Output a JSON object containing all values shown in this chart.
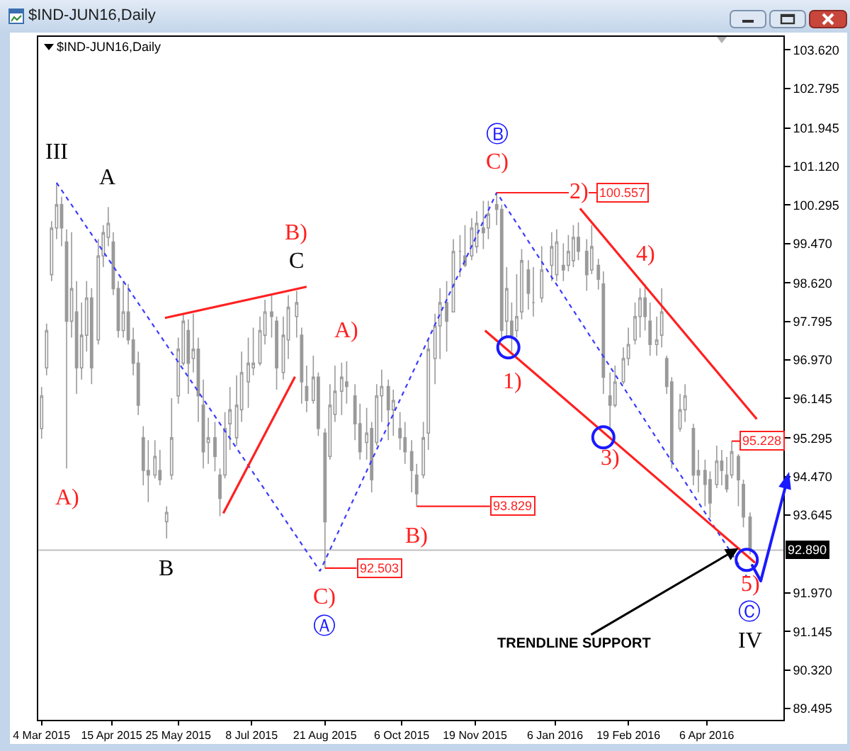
{
  "chart_data": {
    "type": "candlestick",
    "title": "$IND-JUN16,Daily",
    "color": "#9a9a9a",
    "x": [
      "2015-03-04",
      "2015-03-07",
      "2015-03-10",
      "2015-03-13",
      "2015-03-16",
      "2015-03-19",
      "2015-03-22",
      "2015-03-25",
      "2015-03-28",
      "2015-03-31",
      "2015-04-03",
      "2015-04-07",
      "2015-04-10",
      "2015-04-13",
      "2015-04-16",
      "2015-04-19",
      "2015-04-22",
      "2015-04-25",
      "2015-04-28",
      "2015-05-01",
      "2015-05-04",
      "2015-05-07",
      "2015-05-11",
      "2015-05-14",
      "2015-05-18",
      "2015-05-21",
      "2015-05-25",
      "2015-05-28",
      "2015-05-31",
      "2015-06-03",
      "2015-06-06",
      "2015-06-09",
      "2015-06-12",
      "2015-06-16",
      "2015-06-19",
      "2015-06-22",
      "2015-06-25",
      "2015-06-29",
      "2015-07-02",
      "2015-07-06",
      "2015-07-09",
      "2015-07-13",
      "2015-07-16",
      "2015-07-20",
      "2015-07-23",
      "2015-07-27",
      "2015-07-30",
      "2015-08-04",
      "2015-08-07",
      "2015-08-10",
      "2015-08-14",
      "2015-08-17",
      "2015-08-21",
      "2015-08-24",
      "2015-08-27",
      "2015-08-31",
      "2015-09-03",
      "2015-09-08",
      "2015-09-11",
      "2015-09-15",
      "2015-09-18",
      "2015-09-21",
      "2015-09-24",
      "2015-09-28",
      "2015-10-01",
      "2015-10-05",
      "2015-10-08",
      "2015-10-12",
      "2015-10-15",
      "2015-10-19",
      "2015-10-22",
      "2015-10-26",
      "2015-10-29",
      "2015-11-02",
      "2015-11-06",
      "2015-11-10",
      "2015-11-13",
      "2015-11-17",
      "2015-11-20",
      "2015-11-24",
      "2015-11-27",
      "2015-12-02",
      "2015-12-05",
      "2015-12-08",
      "2015-12-11",
      "2015-12-14",
      "2015-12-17",
      "2015-12-21",
      "2015-12-24",
      "2015-12-29",
      "2016-01-04",
      "2016-01-07",
      "2016-01-11",
      "2016-01-14",
      "2016-01-17",
      "2016-01-20",
      "2016-01-25",
      "2016-01-28",
      "2016-02-01",
      "2016-02-04",
      "2016-02-08",
      "2016-02-11",
      "2016-02-16",
      "2016-02-19",
      "2016-02-23",
      "2016-02-26",
      "2016-02-29",
      "2016-03-03",
      "2016-03-07",
      "2016-03-10",
      "2016-03-13",
      "2016-03-16",
      "2016-03-21",
      "2016-03-24",
      "2016-03-29",
      "2016-04-01",
      "2016-04-05",
      "2016-04-08",
      "2016-04-12",
      "2016-04-15",
      "2016-04-18",
      "2016-04-21",
      "2016-04-25",
      "2016-04-28",
      "2016-05-02"
    ],
    "ohlc": [
      [
        95.5,
        96.39,
        95.28,
        96.2
      ],
      [
        96.8,
        97.75,
        96.64,
        97.6
      ],
      [
        98.8,
        99.95,
        98.66,
        99.8
      ],
      [
        99.8,
        100.77,
        99.56,
        100.3
      ],
      [
        100.3,
        100.47,
        99.41,
        99.8
      ],
      [
        99.5,
        99.77,
        94.64,
        97.8
      ],
      [
        97.8,
        99.71,
        97.45,
        98.5
      ],
      [
        98.0,
        98.66,
        96.24,
        96.8
      ],
      [
        96.8,
        98.2,
        96.55,
        97.5
      ],
      [
        97.5,
        98.66,
        97.15,
        98.3
      ],
      [
        98.3,
        98.51,
        96.45,
        96.8
      ],
      [
        97.4,
        99.56,
        97.3,
        99.2
      ],
      [
        99.2,
        99.86,
        98.96,
        99.7
      ],
      [
        99.6,
        100.25,
        99.41,
        99.9
      ],
      [
        99.5,
        99.71,
        98.36,
        98.5
      ],
      [
        98.5,
        98.66,
        97.45,
        97.6
      ],
      [
        97.6,
        98.66,
        97.45,
        98.0
      ],
      [
        98.0,
        98.6,
        97.3,
        97.4
      ],
      [
        97.4,
        97.66,
        96.64,
        96.9
      ],
      [
        96.9,
        97.15,
        95.79,
        96.0
      ],
      [
        95.3,
        95.55,
        94.28,
        94.6
      ],
      [
        94.6,
        95.25,
        93.92,
        94.5
      ],
      [
        94.5,
        95.25,
        94.43,
        94.9
      ],
      [
        94.6,
        95.04,
        94.28,
        94.4
      ],
      [
        93.5,
        93.83,
        93.14,
        93.7
      ],
      [
        94.5,
        96.15,
        94.4,
        95.3
      ],
      [
        96.2,
        97.45,
        96.03,
        97.2
      ],
      [
        96.9,
        97.96,
        96.85,
        97.8
      ],
      [
        97.6,
        97.84,
        96.24,
        96.9
      ],
      [
        97.0,
        97.96,
        96.7,
        97.2
      ],
      [
        97.2,
        97.45,
        95.64,
        96.2
      ],
      [
        96.0,
        96.55,
        94.64,
        95.0
      ],
      [
        95.2,
        95.73,
        94.74,
        95.3
      ],
      [
        95.3,
        95.64,
        94.58,
        94.9
      ],
      [
        94.5,
        94.64,
        93.62,
        94.0
      ],
      [
        94.5,
        95.85,
        94.43,
        95.5
      ],
      [
        95.6,
        96.39,
        95.04,
        95.9
      ],
      [
        95.3,
        96.64,
        95.13,
        96.0
      ],
      [
        95.9,
        97.15,
        95.64,
        96.7
      ],
      [
        96.5,
        97.45,
        95.94,
        96.9
      ],
      [
        96.8,
        97.66,
        96.64,
        96.9
      ],
      [
        96.9,
        97.9,
        96.85,
        97.6
      ],
      [
        97.5,
        98.26,
        97.3,
        98.0
      ],
      [
        98.0,
        98.36,
        97.45,
        97.9
      ],
      [
        97.8,
        97.9,
        96.33,
        96.8
      ],
      [
        96.7,
        97.9,
        96.55,
        97.5
      ],
      [
        97.4,
        98.36,
        96.99,
        98.1
      ],
      [
        97.9,
        98.45,
        97.45,
        98.2
      ],
      [
        97.5,
        97.66,
        96.03,
        96.5
      ],
      [
        96.4,
        96.85,
        95.85,
        96.1
      ],
      [
        96.1,
        97.06,
        96.03,
        96.6
      ],
      [
        96.6,
        96.7,
        95.34,
        95.5
      ],
      [
        95.4,
        95.5,
        92.503,
        93.5
      ],
      [
        94.9,
        96.45,
        94.83,
        96.0
      ],
      [
        95.8,
        96.85,
        95.64,
        96.3
      ],
      [
        96.3,
        96.91,
        95.79,
        96.6
      ],
      [
        96.5,
        96.94,
        96.03,
        96.4
      ],
      [
        96.2,
        96.45,
        95.25,
        95.6
      ],
      [
        95.6,
        96.03,
        94.83,
        95.0
      ],
      [
        95.2,
        95.94,
        94.83,
        95.4
      ],
      [
        95.5,
        95.64,
        94.13,
        94.4
      ],
      [
        95.2,
        96.45,
        95.13,
        96.2
      ],
      [
        96.2,
        96.76,
        95.64,
        96.4
      ],
      [
        96.4,
        96.55,
        95.25,
        95.9
      ],
      [
        95.9,
        96.33,
        95.34,
        96.1
      ],
      [
        95.5,
        95.85,
        95.04,
        95.3
      ],
      [
        95.3,
        95.64,
        94.74,
        95.0
      ],
      [
        95.0,
        95.25,
        94.13,
        94.6
      ],
      [
        94.5,
        94.74,
        93.829,
        94.1
      ],
      [
        94.5,
        95.64,
        94.43,
        95.3
      ],
      [
        95.4,
        97.45,
        95.04,
        97.2
      ],
      [
        97.0,
        97.96,
        96.45,
        97.7
      ],
      [
        97.7,
        98.51,
        96.99,
        98.2
      ],
      [
        98.2,
        98.66,
        97.15,
        97.8
      ],
      [
        98.0,
        99.56,
        98.0,
        99.3
      ],
      [
        99.3,
        99.65,
        98.75,
        99.3
      ],
      [
        99.2,
        99.86,
        98.96,
        99.0
      ],
      [
        99.2,
        100.01,
        99.11,
        99.8
      ],
      [
        99.4,
        100.16,
        99.26,
        99.9
      ],
      [
        99.8,
        100.38,
        99.35,
        99.7
      ],
      [
        99.8,
        100.38,
        99.56,
        100.1
      ],
      [
        100.3,
        100.557,
        99.86,
        100.2
      ],
      [
        100.2,
        100.3,
        97.45,
        97.6
      ],
      [
        97.8,
        98.96,
        97.45,
        98.5
      ],
      [
        97.8,
        98.2,
        97.15,
        97.5
      ],
      [
        97.6,
        98.81,
        97.45,
        97.9
      ],
      [
        98.0,
        99.35,
        97.84,
        99.1
      ],
      [
        98.9,
        99.11,
        98.05,
        98.4
      ],
      [
        98.2,
        98.96,
        97.9,
        98.2
      ],
      [
        98.3,
        99.41,
        98.2,
        98.9
      ],
      [
        99.0,
        99.71,
        98.66,
        99.4
      ],
      [
        98.8,
        99.77,
        98.66,
        99.5
      ],
      [
        99.0,
        99.47,
        98.66,
        98.9
      ],
      [
        99.0,
        99.65,
        98.87,
        99.3
      ],
      [
        99.1,
        99.86,
        98.96,
        99.6
      ],
      [
        99.6,
        99.92,
        99.11,
        99.3
      ],
      [
        99.3,
        99.56,
        98.45,
        98.8
      ],
      [
        98.9,
        99.86,
        98.81,
        99.4
      ],
      [
        99.0,
        99.14,
        98.48,
        98.7
      ],
      [
        98.6,
        98.87,
        96.24,
        96.6
      ],
      [
        96.2,
        96.7,
        95.49,
        96.0
      ],
      [
        96.0,
        96.85,
        95.95,
        96.5
      ],
      [
        96.5,
        97.24,
        96.45,
        97.0
      ],
      [
        97.0,
        97.66,
        96.85,
        97.3
      ],
      [
        97.4,
        98.2,
        97.3,
        97.9
      ],
      [
        97.9,
        98.51,
        97.45,
        98.3
      ],
      [
        98.3,
        98.6,
        97.6,
        97.9
      ],
      [
        97.8,
        98.2,
        97.06,
        97.3
      ],
      [
        97.3,
        97.9,
        97.06,
        97.4
      ],
      [
        97.5,
        98.51,
        97.24,
        98.0
      ],
      [
        97.0,
        97.06,
        96.24,
        96.4
      ],
      [
        96.5,
        96.6,
        94.64,
        94.8
      ],
      [
        95.5,
        96.24,
        95.43,
        95.9
      ],
      [
        95.9,
        96.45,
        95.64,
        96.2
      ],
      [
        95.5,
        95.6,
        94.28,
        94.5
      ],
      [
        94.6,
        95.04,
        94.13,
        94.5
      ],
      [
        94.6,
        94.83,
        93.83,
        94.3
      ],
      [
        94.4,
        94.58,
        93.59,
        93.9
      ],
      [
        94.3,
        95.13,
        94.22,
        94.8
      ],
      [
        94.8,
        95.04,
        94.28,
        94.6
      ],
      [
        94.5,
        94.89,
        94.13,
        94.2
      ],
      [
        94.5,
        95.228,
        94.43,
        95.0
      ],
      [
        94.9,
        94.95,
        93.83,
        94.4
      ],
      [
        94.3,
        94.4,
        93.38,
        93.6
      ],
      [
        93.6,
        93.7,
        92.8,
        92.89
      ]
    ],
    "xlim": [
      "2015-03-02",
      "2016-05-22"
    ],
    "xticks": [
      {
        "value": "2015-03-04",
        "label": "4 Mar 2015"
      },
      {
        "value": "2015-04-15",
        "label": "15 Apr 2015"
      },
      {
        "value": "2015-05-25",
        "label": "25 May 2015"
      },
      {
        "value": "2015-07-08",
        "label": "8 Jul 2015"
      },
      {
        "value": "2015-08-21",
        "label": "21 Aug 2015"
      },
      {
        "value": "2015-10-06",
        "label": "6 Oct 2015"
      },
      {
        "value": "2015-11-19",
        "label": "19 Nov 2015"
      },
      {
        "value": "2016-01-06",
        "label": "6 Jan 2016"
      },
      {
        "value": "2016-02-19",
        "label": "19 Feb 2016"
      },
      {
        "value": "2016-04-06",
        "label": "6 Apr 2016"
      }
    ],
    "ylim": [
      89.25,
      103.9
    ],
    "yticks": [
      {
        "value": 103.62,
        "label": "103.620"
      },
      102.795,
      101.945,
      {
        "value": 101.12,
        "label": "101.120"
      },
      100.295,
      {
        "value": 99.47,
        "label": "99.470"
      },
      {
        "value": 98.62,
        "label": "98.620"
      },
      97.795,
      {
        "value": 96.97,
        "label": "96.970"
      },
      96.145,
      95.295,
      {
        "value": 94.47,
        "label": "94.470"
      },
      93.645,
      {
        "value": 91.97,
        "label": "91.970"
      },
      91.145,
      {
        "value": 90.32,
        "label": "90.320"
      },
      89.495
    ],
    "series": [
      {
        "type": "line",
        "color": "#3b3bff",
        "line_style": "dotted",
        "x": [
          "2015-03-13",
          "2015-08-18",
          "2015-12-02",
          "2016-04-30"
        ],
        "values": [
          100.77,
          92.44,
          100.56,
          92.32
        ]
      },
      {
        "type": "line",
        "color": "#ff2020",
        "x": [
          "2015-05-17",
          "2015-08-10"
        ],
        "values": [
          97.87,
          98.54
        ]
      },
      {
        "type": "line",
        "color": "#ff2020",
        "x": [
          "2015-06-21",
          "2015-08-03"
        ],
        "values": [
          93.68,
          96.61
        ]
      },
      {
        "type": "line",
        "color": "#ff2020",
        "x": [
          "2015-11-25",
          "2016-05-05"
        ],
        "values": [
          97.6,
          92.62
        ]
      },
      {
        "type": "line",
        "color": "#ff2020",
        "x": [
          "2016-01-21",
          "2016-05-06"
        ],
        "values": [
          100.22,
          95.7
        ]
      },
      {
        "type": "line",
        "color": "#ff2020",
        "x": [
          "2015-12-02",
          "2016-01-31"
        ],
        "values": [
          100.557,
          100.557
        ]
      },
      {
        "type": "line",
        "color": "#ff2020",
        "x": [
          "2015-10-15",
          "2015-11-28"
        ],
        "values": [
          93.829,
          93.829
        ]
      },
      {
        "type": "line",
        "color": "#ff2020",
        "x": [
          "2015-08-21",
          "2015-09-09"
        ],
        "values": [
          92.503,
          92.503
        ]
      },
      {
        "type": "line",
        "color": "#ff2020",
        "x": [
          "2016-04-21",
          "2016-04-26"
        ],
        "values": [
          95.228,
          95.228
        ]
      },
      {
        "type": "scatter",
        "color": "#1a1aff",
        "marker": "circle",
        "x": [
          "2015-12-09",
          "2016-02-04",
          "2016-04-30"
        ],
        "values": [
          97.24,
          95.31,
          92.68
        ]
      }
    ],
    "ref_lines": [
      {
        "axis": "y",
        "value": 92.89,
        "label": "92.890",
        "color": "#c0c0c0"
      }
    ],
    "annotations": [
      {
        "text": "III",
        "x": "2015-03-13",
        "y": 100.77
      },
      {
        "text": "A",
        "x": "2015-04-13",
        "y": 100.25
      },
      {
        "text": "A)",
        "x": "2015-03-19",
        "y": 94.64
      },
      {
        "text": "B",
        "x": "2015-05-18",
        "y": 93.14
      },
      {
        "text": "C",
        "x": "2015-08-04",
        "y": 98.45
      },
      {
        "text": "B)",
        "x": "2015-08-04",
        "y": 98.45
      },
      {
        "text": "A)",
        "x": "2015-09-03",
        "y": 96.94
      },
      {
        "text": "C)",
        "x": "2015-08-21",
        "y": 92.503
      },
      {
        "text": "Ⓐ",
        "x": "2015-08-21",
        "y": 92.503
      },
      {
        "text": "B)",
        "x": "2015-10-15",
        "y": 93.829
      },
      {
        "text": "C)",
        "x": "2015-12-02",
        "y": 100.557
      },
      {
        "text": "Ⓑ",
        "x": "2015-12-02",
        "y": 100.557
      },
      {
        "text": "1)",
        "x": "2015-12-11",
        "y": 97.15
      },
      {
        "text": "2)",
        "x": "2016-01-20",
        "y": 99.92
      },
      {
        "text": "3)",
        "x": "2016-02-08",
        "y": 95.49
      },
      {
        "text": "4)",
        "x": "2016-02-29",
        "y": 98.6
      },
      {
        "text": "5)",
        "x": "2016-05-02",
        "y": 92.8
      },
      {
        "text": "Ⓒ",
        "x": "2016-05-02",
        "y": 92.8
      },
      "IV",
      {
        "text": "100.557",
        "x": "2016-01-31",
        "y": 100.557
      },
      {
        "text": "93.829",
        "x": "2015-11-28",
        "y": 93.829
      },
      {
        "text": "92.503",
        "x": "2015-09-09",
        "y": 92.503
      },
      {
        "text": "95.228",
        "x": "2016-04-26",
        "y": 95.228
      },
      {
        "text": "TRENDLINE SUPPORT",
        "x": "2016-04-25",
        "y": 92.93
      }
    ]
  }
}
